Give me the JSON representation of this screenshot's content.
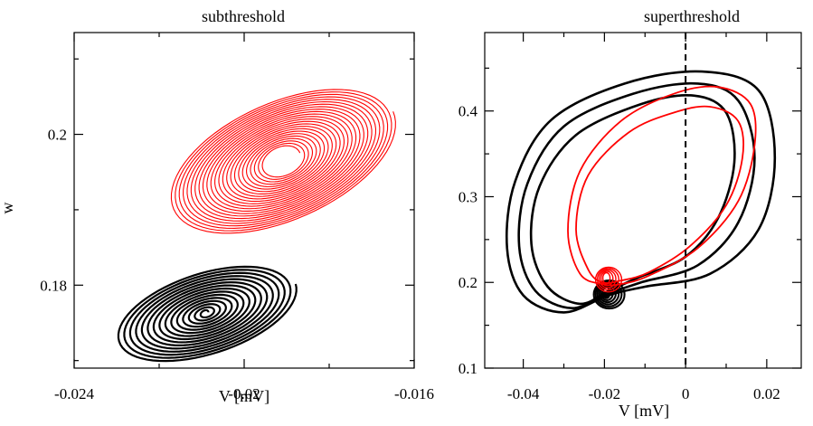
{
  "chart_data": [
    {
      "type": "line",
      "title": "subthreshold",
      "xlabel": "V [mV]",
      "ylabel": "w",
      "xlim": [
        -0.024,
        -0.016
      ],
      "ylim": [
        0.169,
        0.2135
      ],
      "xticks": [
        -0.024,
        -0.02,
        -0.016
      ],
      "xtick_labels": [
        "-0.024",
        "-0.02",
        "-0.016"
      ],
      "yticks": [
        0.18,
        0.2
      ],
      "ytick_labels": [
        "0.18",
        "0.2"
      ],
      "grid": false,
      "series": [
        {
          "color": "#ff0000",
          "kind": "spiral-phase-orbit",
          "center": [
            -0.0191,
            0.1965
          ],
          "outer_radius": [
            0.00285,
            0.0079
          ],
          "inner_radius": [
            0.00045,
            0.0018
          ],
          "tilt_deg": -24,
          "turns": 24
        },
        {
          "color": "#000000",
          "kind": "spiral-phase-orbit",
          "center": [
            -0.0209,
            0.1763
          ],
          "outer_radius": [
            0.00222,
            0.0055
          ],
          "inner_radius": [
            6e-05,
            0.0003
          ],
          "tilt_deg": -18,
          "turns": 15
        }
      ]
    },
    {
      "type": "line",
      "title": "superthreshold",
      "xlabel": "V [mV]",
      "ylabel": "",
      "xlim": [
        -0.0495,
        0.0285
      ],
      "ylim": [
        0.1,
        0.4915
      ],
      "xticks": [
        -0.04,
        -0.02,
        0,
        0.02
      ],
      "xtick_labels": [
        "-0.04",
        "-0.02",
        "0",
        "0.02"
      ],
      "yticks": [
        0.1,
        0.2,
        0.3,
        0.4
      ],
      "ytick_labels": [
        "0.1",
        "0.2",
        "0.3",
        "0.4"
      ],
      "vline": 0,
      "grid": false,
      "series": [
        {
          "color": "#000000",
          "kind": "limit-cycle-loops",
          "loops": [
            [
              [
                -0.019,
                0.185
              ],
              [
                -0.03,
                0.165
              ],
              [
                -0.04,
                0.185
              ],
              [
                -0.044,
                0.24
              ],
              [
                -0.042,
                0.318
              ],
              [
                -0.033,
                0.39
              ],
              [
                -0.015,
                0.432
              ],
              [
                0.004,
                0.446
              ],
              [
                0.018,
                0.424
              ],
              [
                0.022,
                0.345
              ],
              [
                0.018,
                0.262
              ],
              [
                0.006,
                0.21
              ],
              [
                -0.01,
                0.195
              ]
            ],
            [
              [
                -0.019,
                0.187
              ],
              [
                -0.028,
                0.17
              ],
              [
                -0.037,
                0.19
              ],
              [
                -0.041,
                0.242
              ],
              [
                -0.039,
                0.315
              ],
              [
                -0.03,
                0.382
              ],
              [
                -0.013,
                0.42
              ],
              [
                0.003,
                0.432
              ],
              [
                0.013,
                0.412
              ],
              [
                0.017,
                0.345
              ],
              [
                0.013,
                0.27
              ],
              [
                0.003,
                0.22
              ],
              [
                -0.011,
                0.2
              ]
            ],
            [
              [
                -0.019,
                0.19
              ],
              [
                -0.026,
                0.175
              ],
              [
                -0.034,
                0.195
              ],
              [
                -0.038,
                0.245
              ],
              [
                -0.036,
                0.312
              ],
              [
                -0.027,
                0.372
              ],
              [
                -0.011,
                0.408
              ],
              [
                0.002,
                0.418
              ],
              [
                0.01,
                0.398
              ],
              [
                0.012,
                0.34
              ],
              [
                0.008,
                0.275
              ],
              [
                0.0,
                0.23
              ],
              [
                -0.012,
                0.205
              ]
            ]
          ],
          "small_loops": {
            "center": [
              -0.0195,
              0.188
            ],
            "count": 6
          }
        },
        {
          "color": "#ff0000",
          "kind": "limit-cycle-loops",
          "loops": [
            [
              [
                -0.0205,
                0.198
              ],
              [
                -0.026,
                0.21
              ],
              [
                -0.029,
                0.26
              ],
              [
                -0.026,
                0.33
              ],
              [
                -0.016,
                0.388
              ],
              [
                -0.003,
                0.42
              ],
              [
                0.008,
                0.428
              ],
              [
                0.016,
                0.408
              ],
              [
                0.017,
                0.36
              ],
              [
                0.013,
                0.295
              ],
              [
                0.003,
                0.24
              ],
              [
                -0.009,
                0.208
              ],
              [
                -0.016,
                0.198
              ]
            ],
            [
              [
                -0.0205,
                0.2
              ],
              [
                -0.024,
                0.215
              ],
              [
                -0.027,
                0.262
              ],
              [
                -0.024,
                0.325
              ],
              [
                -0.014,
                0.375
              ],
              [
                -0.003,
                0.398
              ],
              [
                0.006,
                0.405
              ],
              [
                0.013,
                0.388
              ],
              [
                0.014,
                0.345
              ],
              [
                0.01,
                0.29
              ],
              [
                0.001,
                0.242
              ],
              [
                -0.009,
                0.212
              ],
              [
                -0.016,
                0.202
              ]
            ]
          ],
          "small_loops": {
            "center": [
              -0.0195,
              0.205
            ],
            "count": 5
          }
        }
      ]
    }
  ]
}
